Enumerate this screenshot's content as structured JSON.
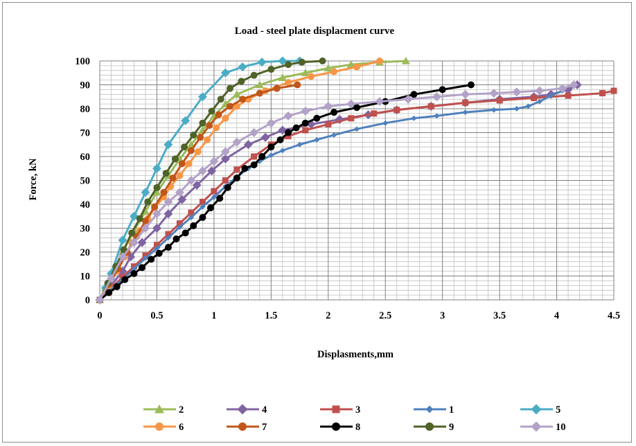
{
  "chart_data": {
    "type": "line",
    "title": "Load - steel plate displacment curve",
    "xlabel": "Displasments,mm",
    "ylabel": "Force, kN",
    "xlim": [
      0,
      4.5
    ],
    "ylim": [
      0,
      100
    ],
    "x_ticks": [
      "0",
      "0.5",
      "1",
      "1.5",
      "2",
      "2.5",
      "3",
      "3.5",
      "4",
      "4.5"
    ],
    "y_ticks": [
      "0",
      "10",
      "20",
      "30",
      "40",
      "50",
      "60",
      "70",
      "80",
      "90",
      "100"
    ],
    "grid": true,
    "legend_position": "bottom",
    "series": [
      {
        "name": "2",
        "color": "#9bbb59",
        "marker": "triangle",
        "x": [
          0,
          0.05,
          0.12,
          0.2,
          0.3,
          0.4,
          0.5,
          0.6,
          0.7,
          0.8,
          0.9,
          1.0,
          1.1,
          1.2,
          1.4,
          1.6,
          1.8,
          2.0,
          2.2,
          2.45,
          2.68
        ],
        "y": [
          0,
          5,
          12,
          20,
          29,
          37,
          45,
          52,
          59,
          65,
          71,
          77,
          82,
          86,
          90,
          93,
          95,
          97,
          98.5,
          99.5,
          100
        ]
      },
      {
        "name": "4",
        "color": "#8064a2",
        "marker": "diamond",
        "x": [
          0,
          0.1,
          0.2,
          0.27,
          0.37,
          0.5,
          0.6,
          0.72,
          0.85,
          0.98,
          1.1,
          1.3,
          1.45,
          1.6,
          1.85,
          2.1,
          2.35,
          2.6,
          2.9,
          3.2,
          3.5,
          3.8,
          3.95,
          4.1,
          4.18
        ],
        "y": [
          0,
          6,
          12,
          18,
          24,
          30,
          36,
          42,
          48,
          54,
          59,
          65,
          68,
          71,
          73.5,
          75.5,
          77.5,
          79.5,
          81,
          82.5,
          84,
          85,
          86,
          88,
          90
        ]
      },
      {
        "name": "3",
        "color": "#c0504d",
        "marker": "square",
        "x": [
          0,
          0.1,
          0.2,
          0.3,
          0.4,
          0.5,
          0.6,
          0.7,
          0.8,
          0.9,
          1.0,
          1.1,
          1.2,
          1.35,
          1.5,
          1.65,
          1.8,
          2.0,
          2.2,
          2.4,
          2.6,
          2.9,
          3.2,
          3.5,
          3.8,
          4.1,
          4.4,
          4.5
        ],
        "y": [
          0,
          5,
          9.5,
          14,
          18.5,
          23,
          27.5,
          32,
          36.5,
          41,
          45.5,
          50,
          54.5,
          60,
          65,
          68.5,
          71,
          73.5,
          76,
          78,
          79.5,
          81,
          82.5,
          83.5,
          84.5,
          85.5,
          86.5,
          87.5
        ]
      },
      {
        "name": "1",
        "color": "#4f81bd",
        "marker": "diamond-small",
        "x": [
          0,
          0.1,
          0.2,
          0.3,
          0.4,
          0.5,
          0.6,
          0.7,
          0.8,
          0.9,
          1.0,
          1.1,
          1.2,
          1.3,
          1.4,
          1.5,
          1.6,
          1.75,
          1.9,
          2.05,
          2.25,
          2.5,
          2.75,
          2.95,
          3.2,
          3.45,
          3.65,
          3.75,
          3.85,
          3.95,
          4.05
        ],
        "y": [
          0,
          4.5,
          8.5,
          13,
          17.5,
          21.5,
          26,
          30.5,
          34.5,
          39,
          43,
          47.5,
          51.5,
          55,
          58,
          60.5,
          62.5,
          65,
          67,
          69,
          71.5,
          74,
          76,
          77,
          78.5,
          79.5,
          80,
          81,
          83,
          85.5,
          87.5
        ]
      },
      {
        "name": "5",
        "color": "#4bacc6",
        "marker": "diamond",
        "x": [
          0,
          0.05,
          0.1,
          0.2,
          0.3,
          0.4,
          0.5,
          0.6,
          0.75,
          0.9,
          1.1,
          1.25,
          1.42,
          1.6,
          1.75
        ],
        "y": [
          0,
          5,
          11,
          25,
          35,
          45,
          55,
          65,
          75,
          85,
          95,
          97.5,
          99.5,
          100,
          100
        ]
      },
      {
        "name": "6",
        "color": "#f79646",
        "marker": "circle",
        "x": [
          0,
          0.08,
          0.15,
          0.22,
          0.28,
          0.35,
          0.42,
          0.48,
          0.56,
          0.62,
          0.7,
          0.78,
          0.86,
          0.94,
          1.02,
          1.1,
          1.2,
          1.3,
          1.45,
          1.65,
          1.85,
          2.05,
          2.25,
          2.45
        ],
        "y": [
          0,
          6,
          12,
          18,
          24,
          29,
          34,
          38.5,
          43,
          47.5,
          52,
          57,
          62,
          67,
          72,
          76,
          81,
          84,
          87.5,
          91,
          93.5,
          95.5,
          97.5,
          100
        ]
      },
      {
        "name": "7",
        "color": "#c0561a",
        "marker": "circle",
        "x": [
          0,
          0.08,
          0.16,
          0.24,
          0.32,
          0.4,
          0.48,
          0.56,
          0.64,
          0.72,
          0.8,
          0.88,
          0.96,
          1.04,
          1.14,
          1.25,
          1.4,
          1.55,
          1.73
        ],
        "y": [
          0,
          6.5,
          13,
          20,
          26.5,
          33,
          39,
          45,
          51,
          57,
          62.5,
          68,
          73,
          77.5,
          81,
          84,
          86.5,
          88.5,
          90
        ]
      },
      {
        "name": "8",
        "color": "#000000",
        "marker": "circle",
        "x": [
          0,
          0.08,
          0.15,
          0.22,
          0.3,
          0.37,
          0.45,
          0.52,
          0.6,
          0.67,
          0.75,
          0.82,
          0.9,
          0.97,
          1.05,
          1.12,
          1.2,
          1.27,
          1.35,
          1.42,
          1.5,
          1.58,
          1.65,
          1.72,
          1.8,
          1.9,
          2.05,
          2.25,
          2.5,
          2.75,
          3.0,
          3.25
        ],
        "y": [
          0,
          3,
          5.5,
          8.5,
          11,
          13.5,
          17,
          19.5,
          22,
          25.5,
          28,
          31,
          34.5,
          38.5,
          42.5,
          47,
          51,
          55,
          56.5,
          60,
          64,
          67,
          70,
          72,
          74,
          76,
          78.5,
          80.5,
          83,
          86,
          88,
          90
        ]
      },
      {
        "name": "9",
        "color": "#4f6228",
        "marker": "circle",
        "x": [
          0,
          0.07,
          0.14,
          0.21,
          0.28,
          0.35,
          0.42,
          0.5,
          0.58,
          0.66,
          0.74,
          0.82,
          0.9,
          0.98,
          1.06,
          1.14,
          1.24,
          1.35,
          1.5,
          1.65,
          1.77,
          1.95
        ],
        "y": [
          0,
          7,
          14,
          21,
          28,
          34,
          41,
          47,
          53,
          59,
          64,
          69,
          74,
          79,
          84,
          88.5,
          91.5,
          94,
          96.5,
          98.5,
          99.5,
          100
        ]
      },
      {
        "name": "10",
        "color": "#b3a2c7",
        "marker": "diamond",
        "x": [
          0,
          0.1,
          0.2,
          0.3,
          0.4,
          0.5,
          0.6,
          0.7,
          0.8,
          0.9,
          1.0,
          1.1,
          1.2,
          1.35,
          1.5,
          1.65,
          1.8,
          2.0,
          2.2,
          2.45,
          2.7,
          2.95,
          3.2,
          3.45,
          3.65,
          3.85,
          4.05,
          4.15
        ],
        "y": [
          0,
          9,
          18,
          24,
          30,
          36,
          41,
          45,
          50,
          54,
          58,
          62,
          66,
          70,
          74,
          77,
          79,
          81,
          82,
          83,
          84,
          85,
          86,
          86.5,
          87,
          87.5,
          88.5,
          90
        ]
      }
    ]
  }
}
